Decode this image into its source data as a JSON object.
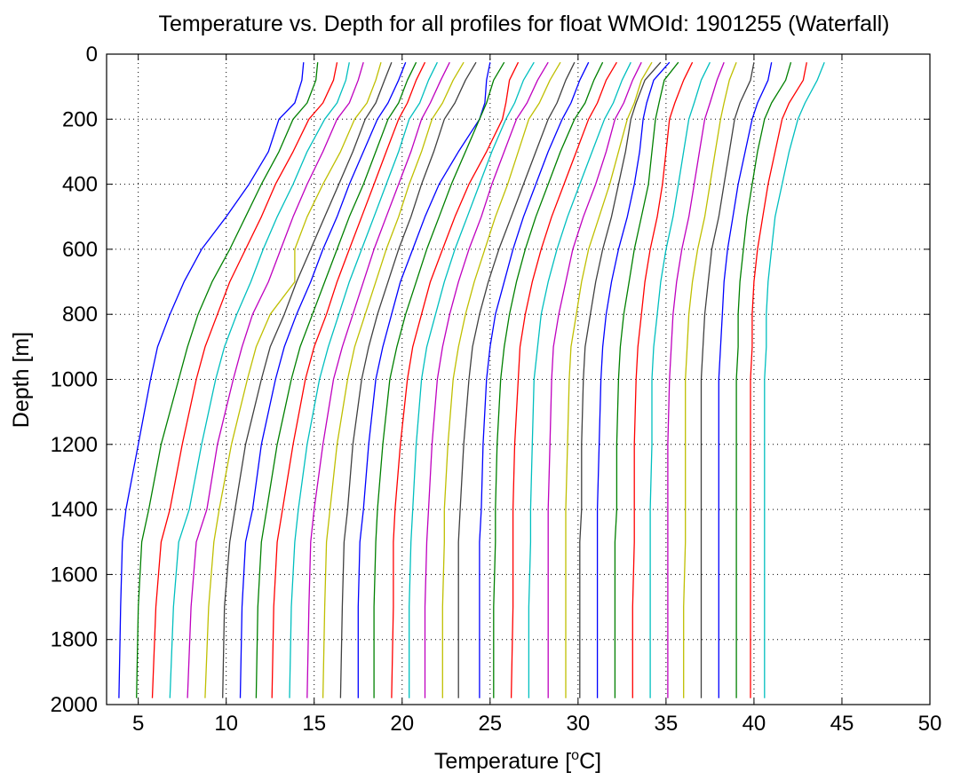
{
  "chart_data": {
    "type": "line",
    "title": "Temperature vs. Depth for all profiles for float WMOId: 1901255 (Waterfall)",
    "xlabel_prefix": "Temperature [",
    "xlabel_sup": "o",
    "xlabel_suffix": "C]",
    "ylabel": "Depth [m]",
    "xlim": [
      3.2,
      50
    ],
    "ylim": [
      0,
      2000
    ],
    "y_reversed": true,
    "xticks": [
      5,
      10,
      15,
      20,
      25,
      30,
      35,
      40,
      45,
      50
    ],
    "yticks": [
      0,
      200,
      400,
      600,
      800,
      1000,
      1200,
      1400,
      1600,
      1800,
      2000
    ],
    "grid": true,
    "grid_style": "dotted",
    "colors": [
      "#0000ff",
      "#008000",
      "#ff0000",
      "#00bfbf",
      "#bf00bf",
      "#bfbf00",
      "#404040"
    ],
    "profile_count": 39,
    "depth_levels": [
      25,
      80,
      150,
      200,
      300,
      400,
      500,
      600,
      700,
      800,
      900,
      1000,
      1200,
      1400,
      1500,
      1700,
      1980
    ],
    "series": [
      {
        "color": "#0000ff",
        "temperature": [
          14.4,
          14.3,
          13.9,
          13.0,
          12.4,
          11.3,
          10.0,
          8.6,
          7.6,
          6.8,
          6.1,
          5.7,
          5.0,
          4.3,
          4.1,
          4.0,
          3.9
        ]
      },
      {
        "color": "#008000",
        "temperature": [
          15.2,
          15.1,
          14.6,
          13.8,
          13.0,
          12.0,
          11.1,
          10.2,
          9.2,
          8.4,
          7.8,
          7.3,
          6.3,
          5.6,
          5.2,
          5.0,
          4.9
        ]
      },
      {
        "color": "#ff0000",
        "temperature": [
          16.3,
          16.1,
          15.5,
          14.7,
          13.8,
          12.8,
          12.0,
          11.1,
          10.2,
          9.5,
          8.8,
          8.3,
          7.5,
          6.8,
          6.3,
          6.0,
          5.8
        ]
      },
      {
        "color": "#00bfbf",
        "temperature": [
          17.0,
          16.8,
          16.3,
          15.6,
          14.6,
          13.8,
          12.9,
          12.1,
          11.4,
          10.6,
          9.9,
          9.4,
          8.6,
          7.9,
          7.3,
          7.0,
          6.8
        ]
      },
      {
        "color": "#bf00bf",
        "temperature": [
          17.8,
          17.5,
          17.0,
          16.3,
          15.5,
          14.6,
          13.8,
          13.1,
          12.4,
          11.5,
          10.9,
          10.4,
          9.5,
          8.9,
          8.3,
          8.0,
          7.8
        ]
      },
      {
        "color": "#bfbf00",
        "temperature": [
          18.8,
          18.5,
          18.0,
          17.3,
          16.5,
          15.5,
          14.6,
          13.9,
          13.9,
          12.5,
          11.7,
          11.2,
          10.3,
          9.6,
          9.3,
          9.0,
          8.8
        ]
      },
      {
        "color": "#404040",
        "temperature": [
          19.4,
          19.0,
          18.5,
          17.9,
          17.2,
          16.4,
          15.6,
          14.8,
          14.0,
          13.3,
          12.5,
          12.0,
          11.1,
          10.5,
          10.2,
          9.9,
          9.8
        ]
      },
      {
        "color": "#0000ff",
        "temperature": [
          20.2,
          19.8,
          19.2,
          18.6,
          17.8,
          17.0,
          16.3,
          15.5,
          14.8,
          14.0,
          13.3,
          12.8,
          12.0,
          11.5,
          11.1,
          10.9,
          10.8
        ]
      },
      {
        "color": "#008000",
        "temperature": [
          20.8,
          20.3,
          19.8,
          19.2,
          18.5,
          17.8,
          17.0,
          16.3,
          15.6,
          14.9,
          14.2,
          13.7,
          12.9,
          12.3,
          12.0,
          11.8,
          11.7
        ]
      },
      {
        "color": "#ff0000",
        "temperature": [
          21.3,
          20.8,
          20.3,
          19.8,
          19.1,
          18.4,
          17.7,
          17.0,
          16.3,
          15.7,
          15.0,
          14.5,
          13.8,
          13.2,
          12.9,
          12.7,
          12.6
        ]
      },
      {
        "color": "#00bfbf",
        "temperature": [
          22.0,
          21.5,
          21.0,
          20.4,
          19.8,
          19.1,
          18.4,
          17.7,
          17.0,
          16.4,
          15.8,
          15.3,
          14.6,
          14.1,
          13.9,
          13.7,
          13.6
        ]
      },
      {
        "color": "#bf00bf",
        "temperature": [
          22.7,
          22.2,
          21.6,
          21.1,
          20.5,
          19.8,
          19.1,
          18.4,
          17.8,
          17.2,
          16.6,
          16.1,
          15.5,
          15.0,
          14.8,
          14.7,
          14.6
        ]
      },
      {
        "color": "#bfbf00",
        "temperature": [
          23.5,
          22.9,
          22.3,
          21.7,
          21.1,
          20.4,
          19.8,
          19.1,
          18.5,
          17.9,
          17.3,
          16.9,
          16.3,
          15.9,
          15.7,
          15.6,
          15.5
        ]
      },
      {
        "color": "#404040",
        "temperature": [
          24.2,
          23.6,
          23.0,
          22.4,
          21.8,
          21.1,
          20.5,
          19.8,
          19.2,
          18.6,
          18.1,
          17.7,
          17.2,
          16.9,
          16.7,
          16.6,
          16.5
        ]
      },
      {
        "color": "#0000ff",
        "temperature": [
          25.0,
          24.8,
          24.7,
          24.4,
          23.2,
          22.1,
          21.3,
          20.6,
          19.9,
          19.4,
          18.9,
          18.5,
          18.1,
          17.8,
          17.6,
          17.5,
          17.5
        ]
      },
      {
        "color": "#008000",
        "temperature": [
          25.8,
          25.2,
          24.8,
          24.4,
          23.6,
          22.8,
          22.1,
          21.4,
          20.8,
          20.2,
          19.7,
          19.3,
          18.9,
          18.6,
          18.5,
          18.4,
          18.4
        ]
      },
      {
        "color": "#ff0000",
        "temperature": [
          26.6,
          26.1,
          25.9,
          25.7,
          24.8,
          23.8,
          23.0,
          22.3,
          21.6,
          21.1,
          20.6,
          20.3,
          19.9,
          19.6,
          19.5,
          19.5,
          19.4
        ]
      },
      {
        "color": "#00bfbf",
        "temperature": [
          27.5,
          26.9,
          26.4,
          25.9,
          25.1,
          24.4,
          23.7,
          23.0,
          22.4,
          21.9,
          21.4,
          21.1,
          20.8,
          20.6,
          20.5,
          20.4,
          20.4
        ]
      },
      {
        "color": "#bf00bf",
        "temperature": [
          28.3,
          27.7,
          27.1,
          26.5,
          25.8,
          25.1,
          24.5,
          23.8,
          23.2,
          22.7,
          22.3,
          22.0,
          21.7,
          21.5,
          21.4,
          21.3,
          21.3
        ]
      },
      {
        "color": "#bfbf00",
        "temperature": [
          29.0,
          28.4,
          27.8,
          27.2,
          26.6,
          26.0,
          25.3,
          24.7,
          24.1,
          23.6,
          23.2,
          22.9,
          22.6,
          22.4,
          22.4,
          22.3,
          22.3
        ]
      },
      {
        "color": "#404040",
        "temperature": [
          29.8,
          29.3,
          28.8,
          28.3,
          27.6,
          26.9,
          26.2,
          25.5,
          24.9,
          24.4,
          24.0,
          23.8,
          23.5,
          23.3,
          23.2,
          23.2,
          23.2
        ]
      },
      {
        "color": "#0000ff",
        "temperature": [
          30.6,
          30.1,
          29.6,
          29.1,
          28.3,
          27.6,
          26.9,
          26.3,
          25.8,
          25.3,
          25.0,
          24.8,
          24.6,
          24.5,
          24.4,
          24.4,
          24.4
        ]
      },
      {
        "color": "#008000",
        "temperature": [
          31.4,
          30.9,
          30.4,
          29.8,
          29.0,
          28.3,
          27.6,
          27.0,
          26.5,
          26.1,
          25.8,
          25.6,
          25.4,
          25.3,
          25.3,
          25.2,
          25.2
        ]
      },
      {
        "color": "#ff0000",
        "temperature": [
          32.2,
          31.6,
          31.1,
          30.6,
          29.9,
          29.2,
          28.5,
          27.9,
          27.4,
          27.0,
          26.7,
          26.6,
          26.4,
          26.3,
          26.3,
          26.3,
          26.2
        ]
      },
      {
        "color": "#00bfbf",
        "temperature": [
          33.0,
          32.5,
          32.0,
          31.5,
          30.8,
          30.1,
          29.4,
          28.8,
          28.3,
          27.9,
          27.7,
          27.5,
          27.4,
          27.3,
          27.3,
          27.2,
          27.2
        ]
      },
      {
        "color": "#bf00bf",
        "temperature": [
          33.6,
          33.1,
          32.6,
          32.1,
          31.6,
          31.0,
          30.3,
          29.7,
          29.3,
          28.9,
          28.6,
          28.5,
          28.4,
          28.3,
          28.3,
          28.3,
          28.3
        ]
      },
      {
        "color": "#bfbf00",
        "temperature": [
          34.2,
          33.6,
          33.2,
          32.8,
          32.3,
          31.8,
          31.2,
          30.6,
          30.2,
          29.9,
          29.6,
          29.5,
          29.4,
          29.3,
          29.3,
          29.3,
          29.3
        ]
      },
      {
        "color": "#404040",
        "temperature": [
          34.7,
          33.8,
          33.3,
          33.0,
          32.7,
          32.3,
          31.9,
          31.4,
          31.0,
          30.7,
          30.4,
          30.3,
          30.2,
          30.2,
          30.1,
          30.1,
          30.1
        ]
      },
      {
        "color": "#0000ff",
        "temperature": [
          35.2,
          34.3,
          33.9,
          33.7,
          33.5,
          33.2,
          32.8,
          32.3,
          31.9,
          31.6,
          31.4,
          31.3,
          31.2,
          31.1,
          31.1,
          31.1,
          31.1
        ]
      },
      {
        "color": "#008000",
        "temperature": [
          35.7,
          34.9,
          34.6,
          34.4,
          34.2,
          34.0,
          33.6,
          33.2,
          32.9,
          32.6,
          32.4,
          32.3,
          32.2,
          32.2,
          32.1,
          32.1,
          32.1
        ]
      },
      {
        "color": "#ff0000",
        "temperature": [
          36.5,
          36.0,
          35.5,
          35.2,
          35.0,
          34.8,
          34.5,
          34.1,
          33.8,
          33.6,
          33.4,
          33.3,
          33.2,
          33.2,
          33.2,
          33.1,
          33.1
        ]
      },
      {
        "color": "#00bfbf",
        "temperature": [
          37.5,
          37.0,
          36.6,
          36.3,
          36.0,
          35.7,
          35.4,
          35.0,
          34.7,
          34.5,
          34.3,
          34.2,
          34.2,
          34.1,
          34.1,
          34.1,
          34.1
        ]
      },
      {
        "color": "#bf00bf",
        "temperature": [
          38.3,
          37.9,
          37.5,
          37.2,
          36.9,
          36.6,
          36.3,
          35.9,
          35.6,
          35.4,
          35.3,
          35.2,
          35.1,
          35.1,
          35.1,
          35.1,
          35.1
        ]
      },
      {
        "color": "#bfbf00",
        "temperature": [
          39.0,
          38.6,
          38.3,
          38.1,
          37.8,
          37.5,
          37.2,
          36.8,
          36.5,
          36.3,
          36.2,
          36.1,
          36.1,
          36.1,
          36.1,
          36.0,
          36.0
        ]
      },
      {
        "color": "#404040",
        "temperature": [
          40.0,
          39.8,
          39.2,
          38.9,
          38.6,
          38.3,
          38.0,
          37.6,
          37.4,
          37.2,
          37.1,
          37.0,
          37.0,
          37.0,
          37.0,
          37.0,
          37.0
        ]
      },
      {
        "color": "#0000ff",
        "temperature": [
          41.0,
          40.8,
          40.2,
          39.9,
          39.5,
          39.1,
          38.8,
          38.5,
          38.3,
          38.2,
          38.1,
          38.0,
          38.0,
          38.0,
          38.0,
          38.0,
          38.0
        ]
      },
      {
        "color": "#008000",
        "temperature": [
          42.1,
          41.8,
          41.0,
          40.6,
          40.2,
          39.9,
          39.6,
          39.4,
          39.2,
          39.1,
          39.1,
          39.0,
          39.0,
          39.0,
          39.0,
          39.0,
          39.0
        ]
      },
      {
        "color": "#ff0000",
        "temperature": [
          43.0,
          42.8,
          42.0,
          41.6,
          41.2,
          40.8,
          40.5,
          40.2,
          40.0,
          39.9,
          39.9,
          39.8,
          39.8,
          39.8,
          39.8,
          39.8,
          39.8
        ]
      },
      {
        "color": "#00bfbf",
        "temperature": [
          44.0,
          43.6,
          42.9,
          42.5,
          42.0,
          41.6,
          41.2,
          41.0,
          40.8,
          40.7,
          40.7,
          40.6,
          40.6,
          40.6,
          40.6,
          40.6,
          40.6
        ]
      }
    ]
  }
}
